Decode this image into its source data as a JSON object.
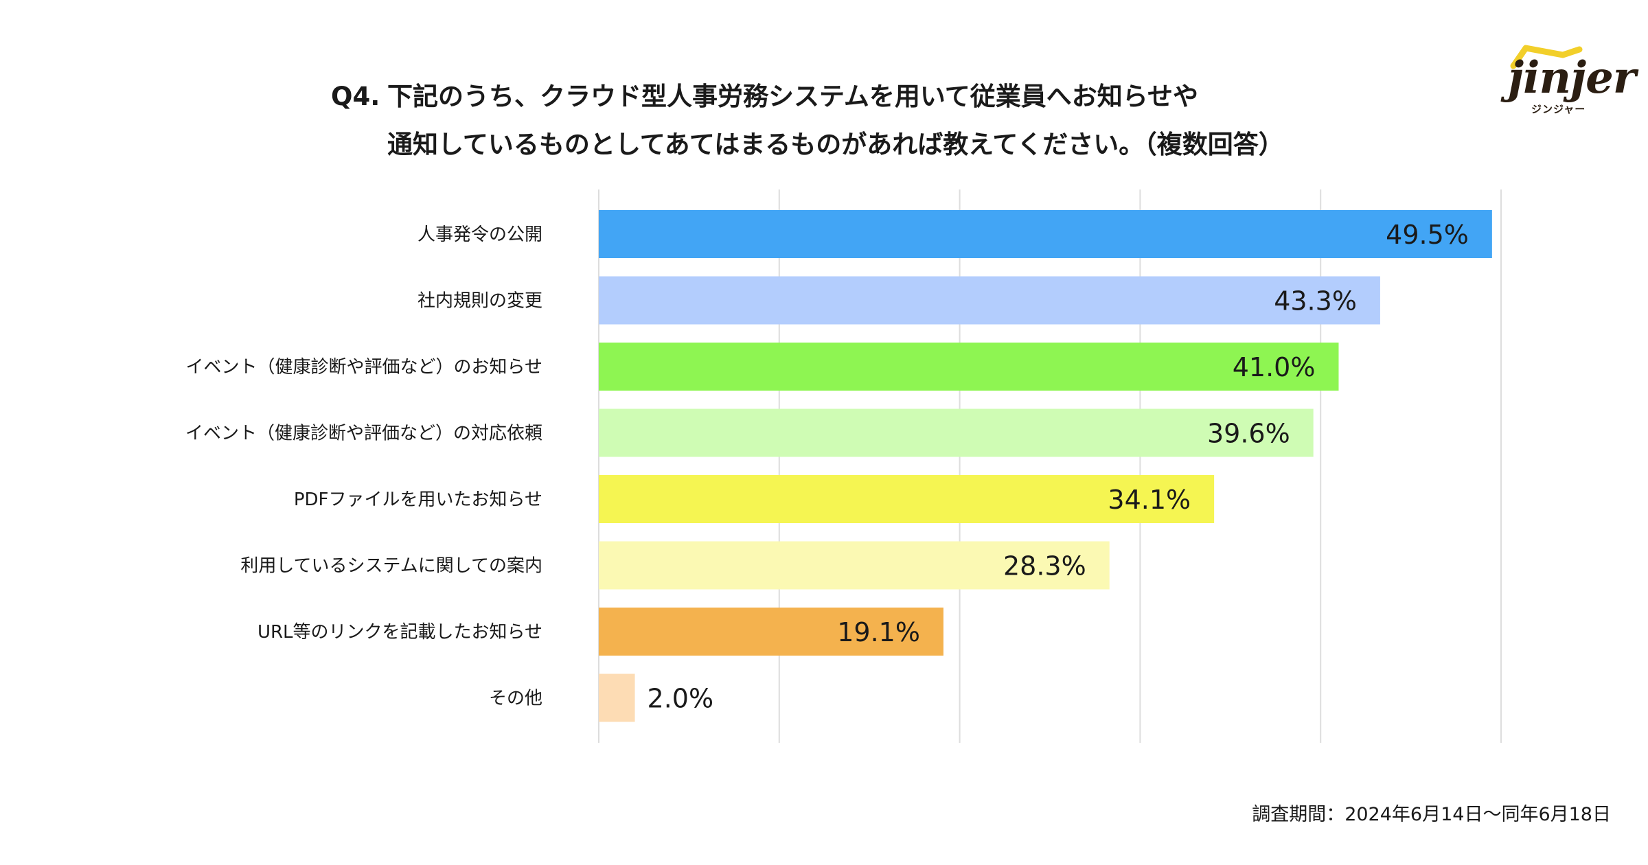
{
  "title": {
    "qnum": "Q4.",
    "line1": "下記のうち、クラウド型人事労務システムを用いて従業員へお知らせや",
    "line2": "通知しているものとしてあてはまるものがあれば教えてください。（複数回答）"
  },
  "logo": {
    "word": "jinjer",
    "sub": "ジンジャー"
  },
  "footer": {
    "period": "調査期間：2024年6月14日〜同年6月18日"
  },
  "chart_data": {
    "type": "bar",
    "orientation": "horizontal",
    "categories": [
      "人事発令の公開",
      "社内規則の変更",
      "イベント（健康診断や評価など）のお知らせ",
      "イベント（健康診断や評価など）の対応依頼",
      "PDFファイルを用いたお知らせ",
      "利用しているシステムに関しての案内",
      "URL等のリンクを記載したお知らせ",
      "その他"
    ],
    "values": [
      49.5,
      43.3,
      41.0,
      39.6,
      34.1,
      28.3,
      19.1,
      2.0
    ],
    "labels": [
      "49.5%",
      "43.3%",
      "41.0%",
      "39.6%",
      "34.1%",
      "28.3%",
      "19.1%",
      "2.0%"
    ],
    "colors": [
      "#42a5f5",
      "#b3cdfd",
      "#8ef552",
      "#cffcb4",
      "#f5f552",
      "#fbf9b3",
      "#f4b24e",
      "#fddcb4"
    ],
    "xlim": [
      0,
      50
    ],
    "grid": true,
    "gridline_color": "#dddddd"
  }
}
